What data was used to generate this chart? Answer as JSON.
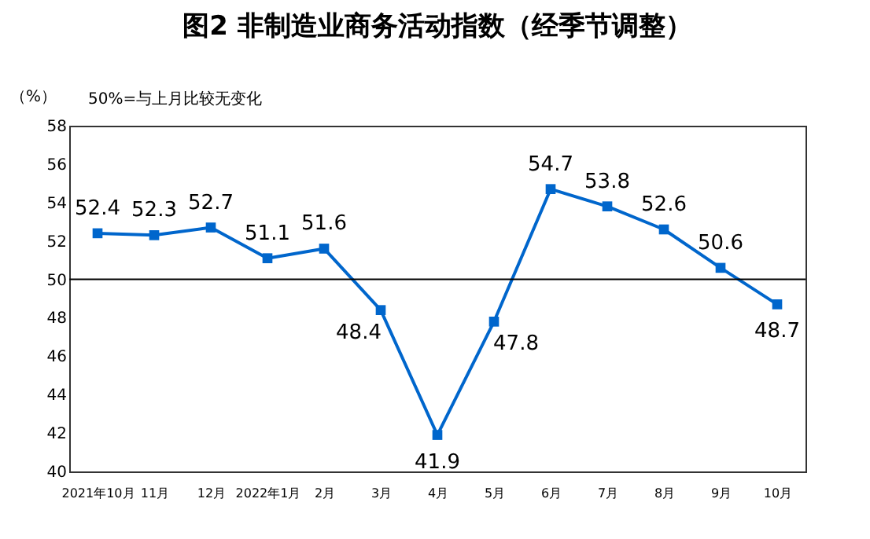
{
  "chart_data": {
    "type": "line",
    "title": "图2  非制造业商务活动指数（经季节调整）",
    "ylabel": "（%）",
    "annotations": [
      "50%=与上月比较无变化"
    ],
    "categories": [
      "2021年10月",
      "11月",
      "12月",
      "2022年1月",
      "2月",
      "3月",
      "4月",
      "5月",
      "6月",
      "7月",
      "8月",
      "9月",
      "10月"
    ],
    "series": [
      {
        "color": "#0066cc",
        "values": [
          52.4,
          52.3,
          52.7,
          51.1,
          51.6,
          48.4,
          41.9,
          47.8,
          54.7,
          53.8,
          52.6,
          50.6,
          48.7
        ]
      }
    ],
    "ylim": [
      40,
      58
    ],
    "yticks": [
      40,
      42,
      44,
      46,
      48,
      50,
      52,
      54,
      56,
      58
    ],
    "ref_lines": [
      {
        "axis": "y",
        "value": 50,
        "label": null,
        "color": "#000000"
      }
    ],
    "data_labels": true,
    "marker": "square",
    "grid": false,
    "legend": false
  }
}
